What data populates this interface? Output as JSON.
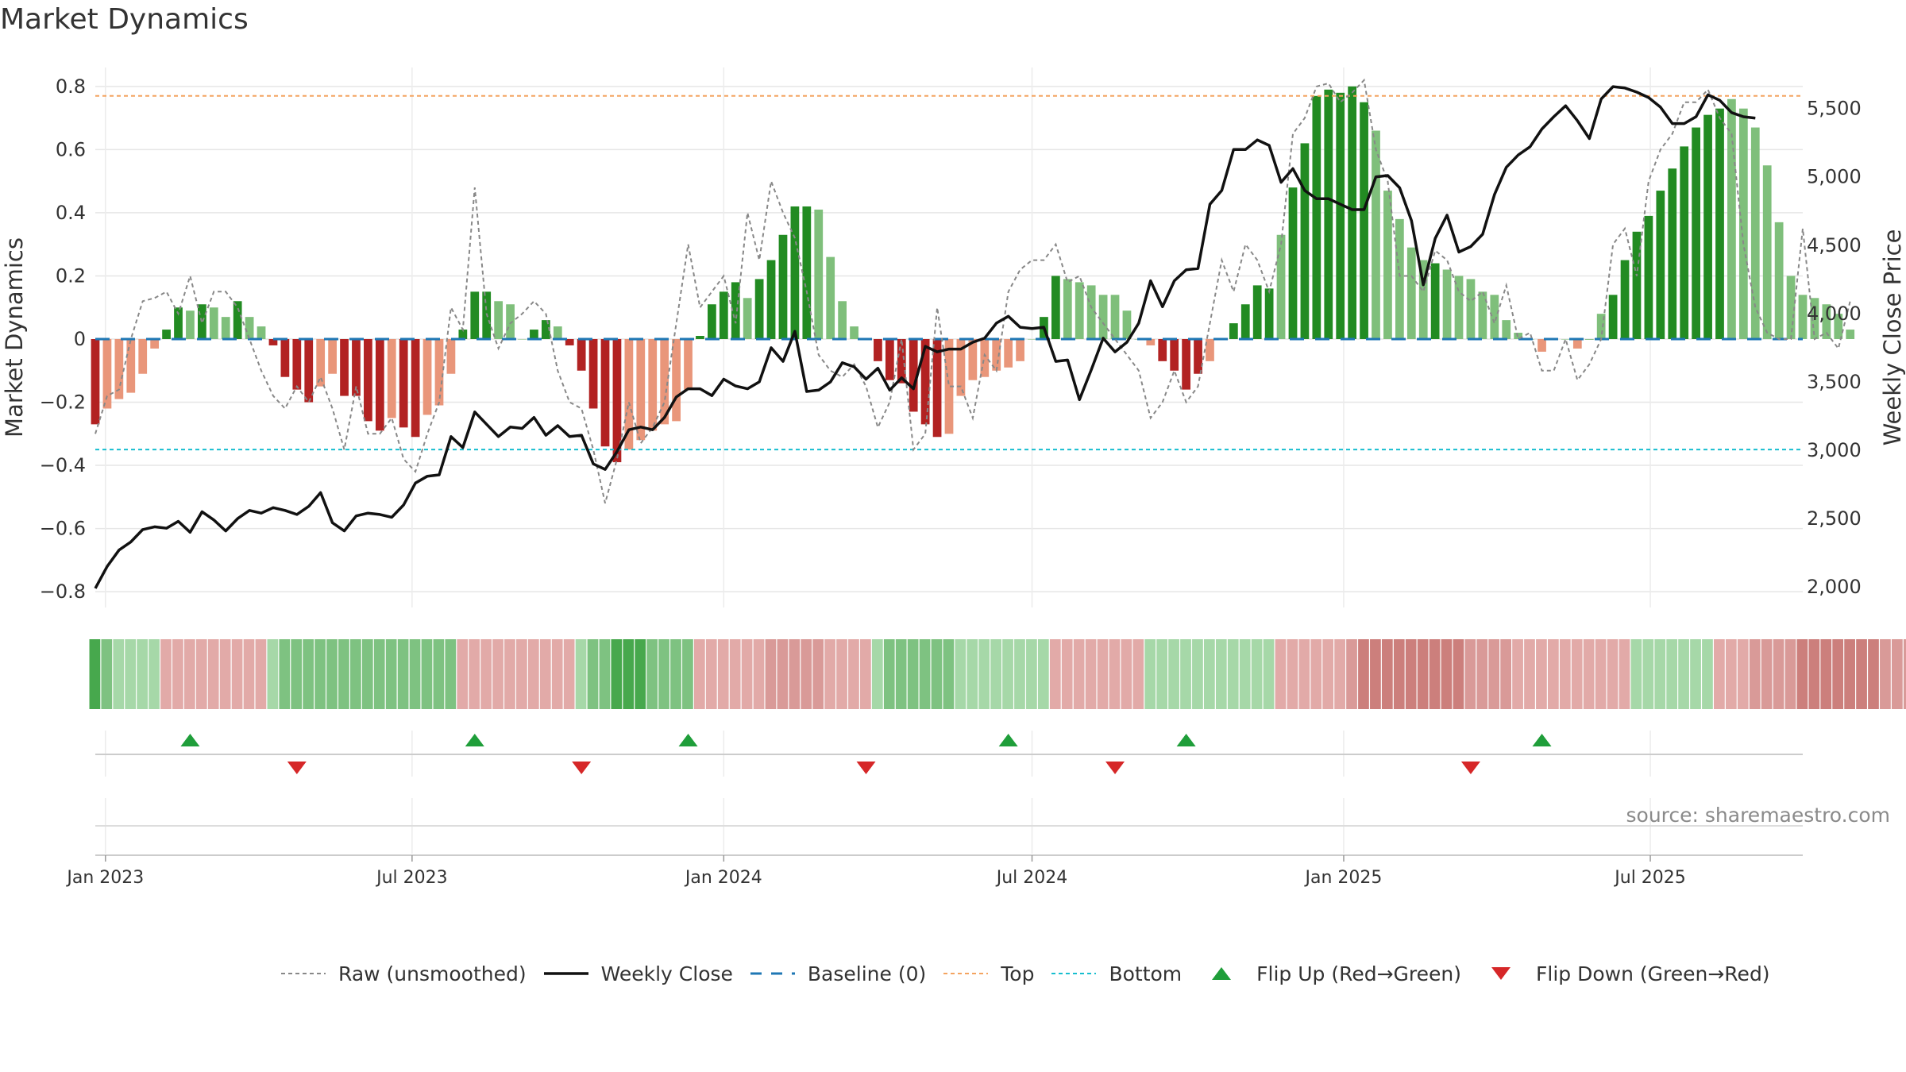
{
  "title": "Market Dynamics",
  "source": "source: sharemaestro.com",
  "colors": {
    "green_strong": "#228b22",
    "green_light": "#7fbf7b",
    "red_strong": "#b22222",
    "red_light": "#e9967a",
    "raw_line": "#888888",
    "close_line": "#111111",
    "baseline": "#1f77b4",
    "top": "#f4a460",
    "bottom": "#17becf",
    "flip_up": "#1f9e3a",
    "flip_down": "#d62728"
  },
  "legend": [
    {
      "key": "raw",
      "label": "Raw (unsmoothed)"
    },
    {
      "key": "close",
      "label": "Weekly Close"
    },
    {
      "key": "baseline",
      "label": "Baseline (0)"
    },
    {
      "key": "top",
      "label": "Top"
    },
    {
      "key": "bottom",
      "label": "Bottom"
    },
    {
      "key": "flip_up",
      "label": "Flip Up (Red→Green)"
    },
    {
      "key": "flip_down",
      "label": "Flip Down (Green→Red)"
    }
  ],
  "chart_data": {
    "type": "bar",
    "title": "Market Dynamics",
    "ylabel": "Market Dynamics",
    "ylabel_right": "Weekly Close Price",
    "ylim": [
      -0.85,
      0.86
    ],
    "ylim_right": [
      1850,
      5800
    ],
    "yticks": [
      -0.8,
      -0.6,
      -0.4,
      -0.2,
      0,
      0.2,
      0.4,
      0.6,
      0.8
    ],
    "ytick_labels": [
      "−0.8",
      "−0.6",
      "−0.4",
      "−0.2",
      "0",
      "0.2",
      "0.4",
      "0.6",
      "0.8"
    ],
    "yticks_right": [
      2000,
      2500,
      3000,
      3500,
      4000,
      4500,
      5000,
      5500
    ],
    "ytick_labels_right": [
      "2,000",
      "2,500",
      "3,000",
      "3,500",
      "4,000",
      "4,500",
      "5,000",
      "5,500"
    ],
    "x_start": "2022-12-26",
    "x_end": "2025-09-29",
    "week_start": "2022-12-26",
    "xticks": [
      "2023-01-01",
      "2023-07-01",
      "2024-01-01",
      "2024-07-01",
      "2025-01-01",
      "2025-07-01"
    ],
    "xtick_labels": [
      "Jan 2023",
      "Jul 2023",
      "Jan 2024",
      "Jul 2024",
      "Jan 2025",
      "Jul 2025"
    ],
    "top_level": 0.77,
    "bottom_level": -0.35,
    "baseline": 0,
    "grid": true,
    "legend_position": "bottom",
    "bars": [
      -0.27,
      -0.22,
      -0.19,
      -0.17,
      -0.11,
      -0.03,
      0.03,
      0.1,
      0.09,
      0.11,
      0.1,
      0.07,
      0.12,
      0.07,
      0.04,
      -0.02,
      -0.12,
      -0.16,
      -0.2,
      -0.15,
      -0.11,
      -0.18,
      -0.18,
      -0.26,
      -0.29,
      -0.25,
      -0.28,
      -0.31,
      -0.24,
      -0.21,
      -0.11,
      0.03,
      0.15,
      0.15,
      0.12,
      0.11,
      0.0,
      0.03,
      0.06,
      0.04,
      -0.02,
      -0.1,
      -0.22,
      -0.34,
      -0.39,
      -0.35,
      -0.32,
      -0.29,
      -0.27,
      -0.26,
      -0.16,
      0.01,
      0.11,
      0.15,
      0.18,
      0.13,
      0.19,
      0.25,
      0.33,
      0.42,
      0.42,
      0.41,
      0.26,
      0.12,
      0.04,
      0.0,
      -0.07,
      -0.13,
      -0.14,
      -0.23,
      -0.27,
      -0.31,
      -0.3,
      -0.18,
      -0.13,
      -0.12,
      -0.1,
      -0.09,
      -0.07,
      0.0,
      0.07,
      0.2,
      0.19,
      0.18,
      0.17,
      0.14,
      0.14,
      0.09,
      0.0,
      -0.02,
      -0.07,
      -0.1,
      -0.16,
      -0.11,
      -0.07,
      0.0,
      0.05,
      0.11,
      0.17,
      0.16,
      0.33,
      0.48,
      0.62,
      0.77,
      0.79,
      0.78,
      0.8,
      0.75,
      0.66,
      0.47,
      0.38,
      0.29,
      0.25,
      0.24,
      0.22,
      0.2,
      0.19,
      0.15,
      0.14,
      0.06,
      0.02,
      0.0,
      -0.04,
      0.0,
      0.0,
      -0.03,
      0.0,
      0.08,
      0.14,
      0.25,
      0.34,
      0.39,
      0.47,
      0.54,
      0.61,
      0.67,
      0.71,
      0.73,
      0.76,
      0.73,
      0.67,
      0.55,
      0.37,
      0.2,
      0.14,
      0.13,
      0.11,
      0.08,
      0.03
    ],
    "bar_shade": [
      "s",
      "l",
      "l",
      "l",
      "l",
      "l",
      "s",
      "s",
      "l",
      "s",
      "l",
      "l",
      "s",
      "l",
      "l",
      "s",
      "s",
      "s",
      "s",
      "l",
      "l",
      "s",
      "s",
      "s",
      "s",
      "l",
      "s",
      "s",
      "l",
      "l",
      "l",
      "s",
      "s",
      "s",
      "l",
      "l",
      "l",
      "s",
      "s",
      "l",
      "s",
      "s",
      "s",
      "s",
      "s",
      "l",
      "l",
      "l",
      "l",
      "l",
      "l",
      "s",
      "s",
      "s",
      "s",
      "l",
      "s",
      "s",
      "s",
      "s",
      "s",
      "l",
      "l",
      "l",
      "l",
      "l",
      "s",
      "s",
      "s",
      "s",
      "s",
      "s",
      "l",
      "l",
      "l",
      "l",
      "l",
      "l",
      "l",
      "l",
      "s",
      "s",
      "l",
      "l",
      "l",
      "l",
      "l",
      "l",
      "l",
      "l",
      "s",
      "s",
      "s",
      "s",
      "l",
      "l",
      "s",
      "s",
      "s",
      "s",
      "l",
      "s",
      "s",
      "s",
      "s",
      "s",
      "s",
      "s",
      "l",
      "l",
      "l",
      "l",
      "l",
      "s",
      "l",
      "l",
      "l",
      "l",
      "l",
      "l",
      "l",
      "l",
      "l",
      "s",
      "l",
      "l",
      "s",
      "l",
      "s",
      "s",
      "s",
      "s",
      "s",
      "s",
      "s",
      "s",
      "s",
      "s",
      "l",
      "l",
      "l",
      "l",
      "l",
      "l",
      "l",
      "l",
      "l"
    ],
    "raw": [
      -0.3,
      -0.18,
      -0.16,
      0.0,
      0.12,
      0.13,
      0.15,
      0.08,
      0.2,
      0.05,
      0.15,
      0.15,
      0.1,
      0.0,
      -0.1,
      -0.18,
      -0.22,
      -0.15,
      -0.2,
      -0.12,
      -0.22,
      -0.35,
      -0.15,
      -0.3,
      -0.3,
      -0.25,
      -0.38,
      -0.42,
      -0.3,
      -0.2,
      0.1,
      0.03,
      0.48,
      0.08,
      -0.03,
      0.05,
      0.08,
      0.12,
      0.08,
      -0.1,
      -0.2,
      -0.22,
      -0.35,
      -0.52,
      -0.38,
      -0.2,
      -0.33,
      -0.28,
      -0.2,
      0.05,
      0.3,
      0.1,
      0.15,
      0.2,
      0.05,
      0.4,
      0.25,
      0.5,
      0.4,
      0.32,
      0.15,
      -0.05,
      -0.1,
      -0.12,
      -0.08,
      -0.15,
      -0.28,
      -0.2,
      0.0,
      -0.35,
      -0.3,
      0.1,
      -0.15,
      -0.15,
      -0.25,
      -0.05,
      -0.1,
      0.15,
      0.22,
      0.25,
      0.25,
      0.3,
      0.18,
      0.2,
      0.1,
      0.05,
      0.0,
      -0.05,
      -0.1,
      -0.25,
      -0.2,
      -0.1,
      -0.2,
      -0.15,
      0.05,
      0.25,
      0.15,
      0.3,
      0.25,
      0.15,
      0.3,
      0.65,
      0.7,
      0.8,
      0.81,
      0.75,
      0.78,
      0.82,
      0.6,
      0.5,
      0.2,
      0.2,
      0.15,
      0.28,
      0.25,
      0.15,
      0.12,
      0.15,
      0.05,
      0.17,
      0.0,
      0.02,
      -0.1,
      -0.1,
      0.0,
      -0.13,
      -0.08,
      0.0,
      0.3,
      0.35,
      0.2,
      0.5,
      0.6,
      0.65,
      0.75,
      0.75,
      0.79,
      0.7,
      0.65,
      0.3,
      0.1,
      0.02,
      0.0,
      0.0,
      0.35,
      0.0,
      0.02,
      -0.03,
      0.12
    ],
    "close": [
      1990,
      2150,
      2270,
      2330,
      2420,
      2440,
      2430,
      2480,
      2400,
      2550,
      2490,
      2410,
      2500,
      2560,
      2540,
      2580,
      2560,
      2530,
      2590,
      2690,
      2470,
      2410,
      2520,
      2540,
      2530,
      2510,
      2600,
      2760,
      2810,
      2820,
      3100,
      3020,
      3280,
      3190,
      3100,
      3170,
      3160,
      3240,
      3110,
      3180,
      3100,
      3110,
      2900,
      2860,
      2990,
      3150,
      3170,
      3150,
      3240,
      3390,
      3450,
      3450,
      3400,
      3520,
      3470,
      3450,
      3500,
      3750,
      3650,
      3870,
      3430,
      3440,
      3500,
      3640,
      3610,
      3520,
      3600,
      3440,
      3530,
      3450,
      3760,
      3720,
      3740,
      3740,
      3790,
      3820,
      3930,
      3980,
      3900,
      3890,
      3900,
      3650,
      3660,
      3370,
      3590,
      3820,
      3720,
      3790,
      3930,
      4240,
      4050,
      4240,
      4320,
      4330,
      4800,
      4900,
      5200,
      5200,
      5270,
      5230,
      4960,
      5060,
      4900,
      4840,
      4840,
      4800,
      4760,
      4760,
      5000,
      5010,
      4920,
      4680,
      4210,
      4550,
      4720,
      4450,
      4490,
      4580,
      4870,
      5070,
      5160,
      5220,
      5350,
      5440,
      5520,
      5410,
      5280,
      5570,
      5660,
      5650,
      5620,
      5580,
      5510,
      5390,
      5390,
      5440,
      5600,
      5560,
      5470,
      5440,
      5430
    ],
    "heat": [
      3,
      2,
      1,
      1,
      1,
      1,
      -1,
      -1,
      -1,
      -1,
      -1,
      -1,
      -1,
      -1,
      -1,
      1,
      2,
      2,
      2,
      2,
      2,
      2,
      2,
      2,
      2,
      2,
      2,
      2,
      2,
      2,
      2,
      -1,
      -1,
      -1,
      -1,
      -1,
      -1,
      -1,
      -1,
      -1,
      -1,
      1,
      2,
      2,
      3,
      3,
      3,
      2,
      2,
      2,
      2,
      -1,
      -1,
      -1,
      -1,
      -1,
      -1,
      -2,
      -2,
      -2,
      -2,
      -2,
      -1,
      -1,
      -1,
      -1,
      1,
      2,
      2,
      2,
      2,
      2,
      2,
      1,
      1,
      1,
      1,
      1,
      1,
      1,
      1,
      -1,
      -1,
      -1,
      -1,
      -1,
      -1,
      -1,
      -1,
      1,
      1,
      1,
      1,
      1,
      1,
      1,
      1,
      1,
      1,
      1,
      -1,
      -1,
      -1,
      -1,
      -1,
      -1,
      -2,
      -3,
      -3,
      -3,
      -3,
      -3,
      -3,
      -3,
      -3,
      -3,
      -2,
      -2,
      -2,
      -2,
      -1,
      -1,
      -1,
      -1,
      -1,
      -1,
      -1,
      -1,
      -1,
      -1,
      1,
      1,
      1,
      1,
      1,
      1,
      1,
      -1,
      -1,
      -1,
      -2,
      -2,
      -2,
      -2,
      -3,
      -3,
      -3,
      -3,
      -3,
      -3,
      -3,
      -2,
      -2,
      -2,
      -2,
      -1,
      -1,
      -1
    ],
    "flips_up": [
      "2023-02-20",
      "2023-08-07",
      "2023-12-11",
      "2024-06-17",
      "2024-09-30",
      "2025-04-28"
    ],
    "flips_down": [
      "2023-04-24",
      "2023-10-09",
      "2024-03-25",
      "2024-08-19",
      "2025-03-17"
    ]
  }
}
